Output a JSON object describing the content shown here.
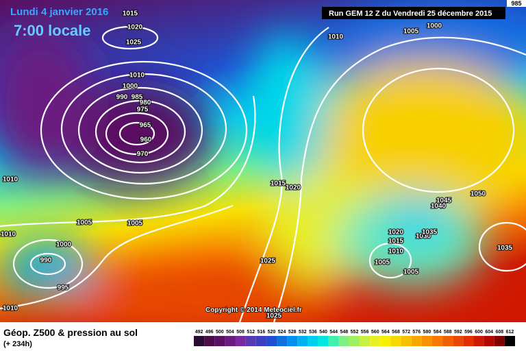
{
  "header": {
    "date": "Lundi 4 janvier 2016",
    "time": "7:00 locale",
    "run": "Run GEM 12 Z du Vendredi 25 décembre 2015",
    "corner": "985"
  },
  "copyright": "Copyright © 2014 Meteociel.fr",
  "isobar_labels": [
    "1015",
    "1020",
    "1025",
    "1010",
    "1000",
    "990",
    "985",
    "980",
    "975",
    "965",
    "960",
    "970",
    "1010",
    "1005",
    "1005",
    "1010",
    "1000",
    "990",
    "995",
    "1010",
    "1010",
    "1005",
    "1000",
    "1015",
    "1020",
    "1025",
    "1025",
    "1045",
    "1050",
    "1040",
    "1020",
    "1015",
    "1010",
    "1030",
    "1035",
    "1005",
    "1005",
    "1035"
  ],
  "legend": {
    "title": "Géop. Z500 & pression au sol",
    "lead": "(+ 234h)",
    "scale": [
      {
        "label": "492",
        "color": "#2b0b30"
      },
      {
        "label": "496",
        "color": "#4a0d4a"
      },
      {
        "label": "500",
        "color": "#5a1060"
      },
      {
        "label": "504",
        "color": "#6a1a80"
      },
      {
        "label": "508",
        "color": "#7a2aa0"
      },
      {
        "label": "512",
        "color": "#5a3ab0"
      },
      {
        "label": "516",
        "color": "#3a40c0"
      },
      {
        "label": "520",
        "color": "#2050d0"
      },
      {
        "label": "524",
        "color": "#1070e0"
      },
      {
        "label": "528",
        "color": "#0090f0"
      },
      {
        "label": "532",
        "color": "#00b0f0"
      },
      {
        "label": "536",
        "color": "#00d0f0"
      },
      {
        "label": "540",
        "color": "#00e8e0"
      },
      {
        "label": "544",
        "color": "#40f0b0"
      },
      {
        "label": "548",
        "color": "#80f080"
      },
      {
        "label": "552",
        "color": "#a0f060"
      },
      {
        "label": "556",
        "color": "#c8f040"
      },
      {
        "label": "560",
        "color": "#e8f020"
      },
      {
        "label": "564",
        "color": "#f8f000"
      },
      {
        "label": "568",
        "color": "#f8d800"
      },
      {
        "label": "572",
        "color": "#f8c000"
      },
      {
        "label": "576",
        "color": "#f8a800"
      },
      {
        "label": "580",
        "color": "#f89000"
      },
      {
        "label": "584",
        "color": "#f87800"
      },
      {
        "label": "588",
        "color": "#f06000"
      },
      {
        "label": "592",
        "color": "#e84800"
      },
      {
        "label": "596",
        "color": "#e03000"
      },
      {
        "label": "600",
        "color": "#d01800"
      },
      {
        "label": "604",
        "color": "#b00800"
      },
      {
        "label": "608",
        "color": "#800000"
      },
      {
        "label": "612",
        "color": "#000000"
      }
    ]
  }
}
